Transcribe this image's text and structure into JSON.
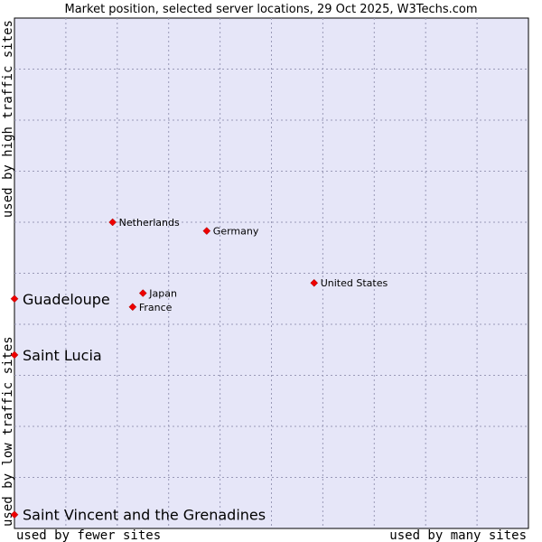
{
  "chart_data": {
    "type": "scatter",
    "title": "Market position, selected server locations, 29 Oct 2025, W3Techs.com",
    "xlabel_left": "used by fewer sites",
    "xlabel_right": "used by many sites",
    "ylabel_bottom": "used by low traffic sites",
    "ylabel_top": "used by high traffic sites",
    "grid": true,
    "colors": {
      "plot_bg": "#e6e6f8",
      "point": "#ee0000",
      "grid": "#9a9ab8"
    },
    "xlim": [
      0,
      100
    ],
    "ylim": [
      0,
      100
    ],
    "points": [
      {
        "name": "Netherlands",
        "x": 19.1,
        "y": 60.0,
        "highlight": false
      },
      {
        "name": "Germany",
        "x": 37.4,
        "y": 58.3,
        "highlight": false
      },
      {
        "name": "United States",
        "x": 58.3,
        "y": 48.1,
        "highlight": false
      },
      {
        "name": "Japan",
        "x": 25.0,
        "y": 46.1,
        "highlight": false
      },
      {
        "name": "France",
        "x": 23.0,
        "y": 43.4,
        "highlight": false
      },
      {
        "name": "Guadeloupe",
        "x": 0.0,
        "y": 45.0,
        "highlight": true
      },
      {
        "name": "Saint Lucia",
        "x": 0.0,
        "y": 34.0,
        "highlight": true
      },
      {
        "name": "Saint Vincent and the Grenadines",
        "x": 0.0,
        "y": 2.7,
        "highlight": true
      }
    ]
  }
}
